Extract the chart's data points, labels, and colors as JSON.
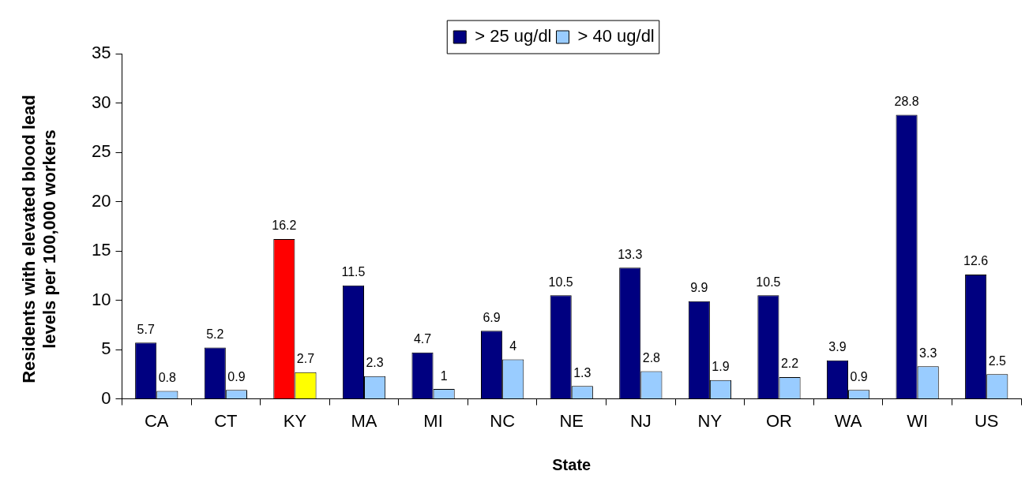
{
  "chart_data": {
    "type": "bar",
    "xlabel": "State",
    "ylabel": "Residents with elevated blood lead levels per 100,000 workers",
    "categories": [
      "CA",
      "CT",
      "KY",
      "MA",
      "MI",
      "NC",
      "NE",
      "NJ",
      "NY",
      "OR",
      "WA",
      "WI",
      "US"
    ],
    "series": [
      {
        "name": "> 25 ug/dl",
        "color": "#000080",
        "colors": [
          "#000080",
          "#000080",
          "#ff0000",
          "#000080",
          "#000080",
          "#000080",
          "#000080",
          "#000080",
          "#000080",
          "#000080",
          "#000080",
          "#000080",
          "#000080"
        ],
        "values": [
          5.7,
          5.2,
          16.2,
          11.5,
          4.7,
          6.9,
          10.5,
          13.3,
          9.9,
          10.5,
          3.9,
          28.8,
          12.6
        ]
      },
      {
        "name": "> 40 ug/dl",
        "color": "#99ccff",
        "colors": [
          "#99ccff",
          "#99ccff",
          "#ffff00",
          "#99ccff",
          "#99ccff",
          "#99ccff",
          "#99ccff",
          "#99ccff",
          "#99ccff",
          "#99ccff",
          "#99ccff",
          "#99ccff",
          "#99ccff"
        ],
        "values": [
          0.8,
          0.9,
          2.7,
          2.3,
          1,
          4,
          1.3,
          2.8,
          1.9,
          2.2,
          0.9,
          3.3,
          2.5
        ]
      }
    ],
    "ylim": [
      0,
      35
    ],
    "yticks": [
      0,
      5,
      10,
      15,
      20,
      25,
      30,
      35
    ],
    "grid": false,
    "legend": "top",
    "data_labels": true
  }
}
